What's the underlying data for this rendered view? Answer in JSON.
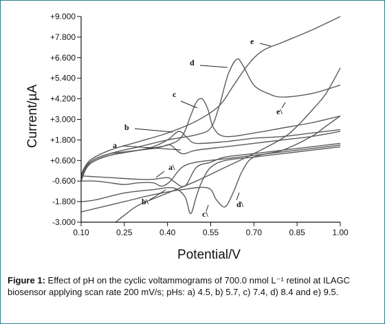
{
  "chart_data": {
    "type": "line",
    "xlabel": "Potential/V",
    "ylabel": "Current/µA",
    "xlim": [
      0.1,
      1.0
    ],
    "ylim": [
      -3.0,
      9.0
    ],
    "x_ticks": [
      "0.10",
      "0.25",
      "0.40",
      "0.55",
      "0.70",
      "0.85",
      "1.00"
    ],
    "y_ticks": [
      "+9.000",
      "+7.800",
      "+6.600",
      "+5.400",
      "+4.200",
      "+3.000",
      "+1.800",
      "+0.600",
      "-0.600",
      "-1.800",
      "-3.000"
    ],
    "grid": false,
    "curve_labels": [
      "a",
      "b",
      "c",
      "d",
      "e",
      "a\\",
      "b\\",
      "c\\",
      "d\\",
      "e\\"
    ],
    "series": [
      {
        "name": "a",
        "anodic": [
          [
            0.1,
            -0.5
          ],
          [
            0.12,
            0.3
          ],
          [
            0.15,
            0.7
          ],
          [
            0.2,
            1.0
          ],
          [
            0.25,
            1.1
          ],
          [
            0.3,
            1.2
          ],
          [
            0.35,
            1.3
          ],
          [
            0.38,
            1.4
          ],
          [
            0.41,
            1.5
          ],
          [
            0.45,
            1.0
          ],
          [
            0.5,
            1.2
          ],
          [
            0.6,
            1.4
          ],
          [
            0.7,
            1.6
          ],
          [
            0.8,
            1.8
          ],
          [
            0.9,
            2.0
          ],
          [
            1.0,
            2.3
          ]
        ],
        "cathodic": [
          [
            1.0,
            1.5
          ],
          [
            0.9,
            1.3
          ],
          [
            0.8,
            1.1
          ],
          [
            0.7,
            0.9
          ],
          [
            0.6,
            0.7
          ],
          [
            0.5,
            0.5
          ],
          [
            0.45,
            0.2
          ],
          [
            0.41,
            -0.6
          ],
          [
            0.38,
            -0.9
          ],
          [
            0.35,
            -0.7
          ],
          [
            0.3,
            -0.7
          ],
          [
            0.25,
            -0.8
          ],
          [
            0.2,
            -0.7
          ],
          [
            0.15,
            -0.6
          ],
          [
            0.1,
            -0.6
          ]
        ]
      },
      {
        "name": "b",
        "anodic": [
          [
            0.1,
            -0.6
          ],
          [
            0.12,
            0.2
          ],
          [
            0.15,
            0.6
          ],
          [
            0.2,
            0.9
          ],
          [
            0.3,
            1.2
          ],
          [
            0.35,
            1.4
          ],
          [
            0.4,
            1.8
          ],
          [
            0.44,
            2.3
          ],
          [
            0.47,
            1.9
          ],
          [
            0.5,
            1.6
          ],
          [
            0.6,
            1.7
          ],
          [
            0.7,
            1.9
          ],
          [
            0.8,
            2.0
          ],
          [
            0.9,
            2.2
          ],
          [
            1.0,
            2.4
          ]
        ],
        "cathodic": [
          [
            1.0,
            1.6
          ],
          [
            0.9,
            1.4
          ],
          [
            0.8,
            1.2
          ],
          [
            0.7,
            1.0
          ],
          [
            0.6,
            0.8
          ],
          [
            0.55,
            0.5
          ],
          [
            0.5,
            0.2
          ],
          [
            0.46,
            -0.9
          ],
          [
            0.42,
            -0.6
          ],
          [
            0.4,
            -0.4
          ],
          [
            0.35,
            -0.5
          ],
          [
            0.3,
            -0.5
          ],
          [
            0.2,
            -0.4
          ],
          [
            0.1,
            -0.3
          ]
        ]
      },
      {
        "name": "c",
        "anodic": [
          [
            0.1,
            -0.4
          ],
          [
            0.13,
            0.4
          ],
          [
            0.2,
            0.9
          ],
          [
            0.3,
            1.2
          ],
          [
            0.4,
            1.5
          ],
          [
            0.45,
            2.0
          ],
          [
            0.48,
            3.2
          ],
          [
            0.5,
            4.0
          ],
          [
            0.52,
            4.2
          ],
          [
            0.54,
            3.6
          ],
          [
            0.56,
            2.5
          ],
          [
            0.6,
            2.0
          ],
          [
            0.7,
            2.2
          ],
          [
            0.8,
            2.5
          ],
          [
            0.9,
            2.8
          ],
          [
            1.0,
            3.2
          ]
        ],
        "cathodic": [
          [
            1.0,
            1.4
          ],
          [
            0.9,
            1.2
          ],
          [
            0.8,
            1.0
          ],
          [
            0.7,
            0.8
          ],
          [
            0.6,
            0.6
          ],
          [
            0.55,
            0.2
          ],
          [
            0.52,
            -0.6
          ],
          [
            0.5,
            -1.5
          ],
          [
            0.48,
            -2.5
          ],
          [
            0.46,
            -1.5
          ],
          [
            0.42,
            -1.0
          ],
          [
            0.35,
            -1.1
          ],
          [
            0.25,
            -1.3
          ],
          [
            0.15,
            -1.7
          ],
          [
            0.1,
            -1.8
          ]
        ]
      },
      {
        "name": "d",
        "anodic": [
          [
            0.1,
            -0.3
          ],
          [
            0.13,
            0.5
          ],
          [
            0.2,
            1.0
          ],
          [
            0.3,
            1.4
          ],
          [
            0.4,
            1.8
          ],
          [
            0.5,
            2.1
          ],
          [
            0.55,
            2.5
          ],
          [
            0.58,
            3.8
          ],
          [
            0.61,
            5.6
          ],
          [
            0.64,
            6.5
          ],
          [
            0.66,
            6.2
          ],
          [
            0.7,
            5.0
          ],
          [
            0.75,
            4.5
          ],
          [
            0.8,
            4.3
          ],
          [
            0.9,
            4.5
          ],
          [
            1.0,
            5.0
          ]
        ],
        "cathodic": [
          [
            1.0,
            3.2
          ],
          [
            0.95,
            2.6
          ],
          [
            0.9,
            2.0
          ],
          [
            0.8,
            1.2
          ],
          [
            0.7,
            0.8
          ],
          [
            0.66,
            0.0
          ],
          [
            0.63,
            -1.2
          ],
          [
            0.6,
            -2.1
          ],
          [
            0.57,
            -1.7
          ],
          [
            0.54,
            -1.0
          ],
          [
            0.45,
            -1.1
          ],
          [
            0.35,
            -1.4
          ],
          [
            0.25,
            -1.8
          ],
          [
            0.15,
            -2.2
          ],
          [
            0.1,
            -2.4
          ]
        ]
      },
      {
        "name": "e",
        "anodic": [
          [
            0.1,
            -0.2
          ],
          [
            0.13,
            0.6
          ],
          [
            0.2,
            1.2
          ],
          [
            0.3,
            1.7
          ],
          [
            0.4,
            2.2
          ],
          [
            0.5,
            2.9
          ],
          [
            0.58,
            3.8
          ],
          [
            0.63,
            5.0
          ],
          [
            0.68,
            6.2
          ],
          [
            0.73,
            7.0
          ],
          [
            0.8,
            7.5
          ],
          [
            0.9,
            8.2
          ],
          [
            1.0,
            9.0
          ]
        ],
        "cathodic": [
          [
            1.0,
            6.0
          ],
          [
            0.95,
            4.5
          ],
          [
            0.9,
            3.5
          ],
          [
            0.85,
            2.6
          ],
          [
            0.8,
            1.9
          ],
          [
            0.7,
            1.0
          ],
          [
            0.6,
            0.2
          ],
          [
            0.5,
            -0.6
          ],
          [
            0.4,
            -1.3
          ],
          [
            0.3,
            -2.0
          ],
          [
            0.25,
            -2.6
          ],
          [
            0.22,
            -3.0
          ]
        ]
      }
    ]
  },
  "caption": {
    "lead": "Figure 1:",
    "text": " Effect of pH on the cyclic voltammograms of 700.0 nmol L⁻¹ retinol at ILAGC biosensor applying scan rate 200 mV/s; pHs: a) 4.5, b) 5.7, c) 7.4, d) 8.4 and e) 9.5."
  }
}
